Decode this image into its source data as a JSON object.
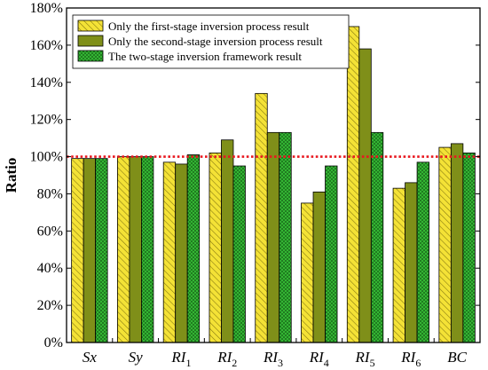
{
  "chart_data": {
    "type": "bar",
    "title": "",
    "xlabel": "",
    "ylabel": "Ratio",
    "ylim": [
      0,
      180
    ],
    "yticks": [
      0,
      20,
      40,
      60,
      80,
      100,
      120,
      140,
      160,
      180
    ],
    "ytick_labels": [
      "0%",
      "20%",
      "40%",
      "60%",
      "80%",
      "100%",
      "120%",
      "140%",
      "160%",
      "180%"
    ],
    "categories": [
      {
        "base": "Sx",
        "sub": ""
      },
      {
        "base": "Sy",
        "sub": ""
      },
      {
        "base": "RI",
        "sub": "1"
      },
      {
        "base": "RI",
        "sub": "2"
      },
      {
        "base": "RI",
        "sub": "3"
      },
      {
        "base": "RI",
        "sub": "4"
      },
      {
        "base": "RI",
        "sub": "5"
      },
      {
        "base": "RI",
        "sub": "6"
      },
      {
        "base": "BC",
        "sub": ""
      }
    ],
    "series": [
      {
        "name": "Only the first-stage inversion process result",
        "color": "#f4e236",
        "pattern": "diagonal-hatch",
        "values": [
          99,
          100,
          97,
          102,
          134,
          75,
          170,
          83,
          105
        ]
      },
      {
        "name": "Only the second-stage inversion process result",
        "color": "#7f8f19",
        "pattern": "solid",
        "values": [
          99,
          100,
          96,
          109,
          113,
          81,
          158,
          86,
          107
        ]
      },
      {
        "name": "The two-stage inversion framework result",
        "color": "#38c438",
        "pattern": "crosshatch",
        "values": [
          99,
          100,
          101,
          95,
          113,
          95,
          113,
          97,
          102
        ]
      }
    ],
    "reference_line": {
      "value": 100,
      "color": "#e8171f",
      "style": "dotted"
    },
    "legend_position": "top-left",
    "grid": false
  }
}
